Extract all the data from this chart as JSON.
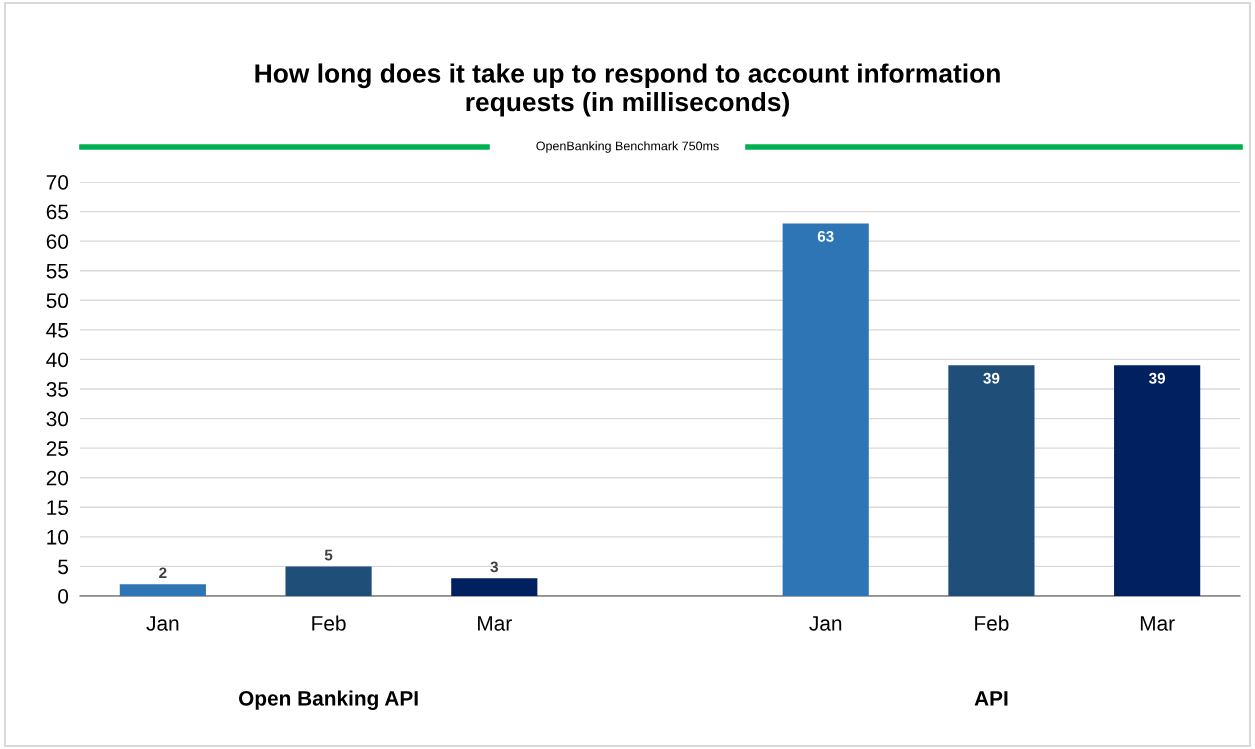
{
  "chart_data": {
    "type": "bar",
    "title": "How long does it take up to respond to account information\nrequests (in milliseconds)",
    "categories": [
      "Jan",
      "Feb",
      "Mar",
      null,
      "Jan",
      "Feb",
      "Mar"
    ],
    "values": [
      2,
      5,
      3,
      null,
      63,
      39,
      39
    ],
    "colors": [
      "#2e75b6",
      "#1f4e79",
      "#002060",
      "#ffffff",
      "#2e75b6",
      "#1f4e79",
      "#002060"
    ],
    "ylim": [
      0,
      70
    ],
    "yticks": [
      0,
      5,
      10,
      15,
      20,
      25,
      30,
      35,
      40,
      45,
      50,
      55,
      60,
      65,
      70
    ],
    "grid": "y",
    "data_labels": true,
    "annotations": [
      "OpenBanking Benchmark 750ms",
      "Open Banking API",
      "API"
    ]
  }
}
